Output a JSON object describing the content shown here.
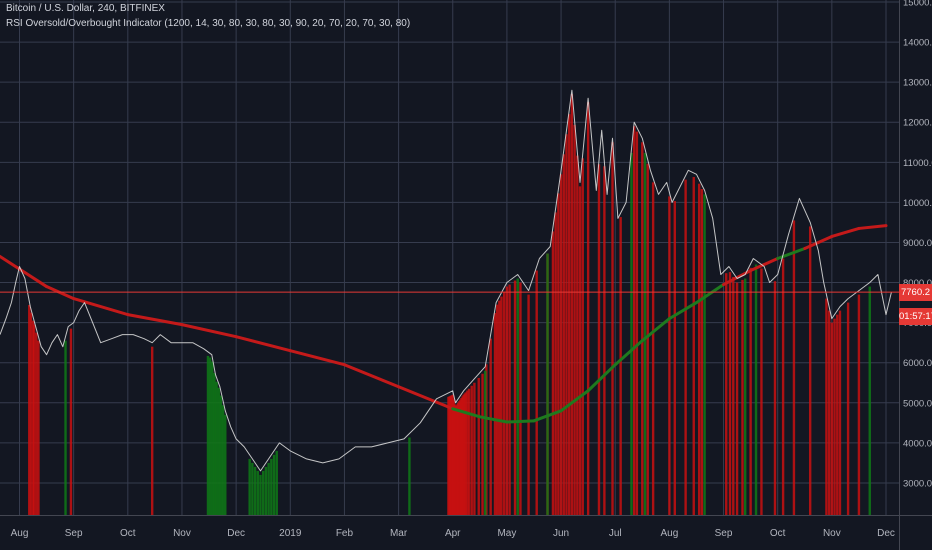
{
  "legend": {
    "symbol": "Bitcoin / U.S. Dollar, 240, BITFINEX",
    "indicator": "RSI Oversold/Overbought Indicator (1200, 14, 30, 80, 30, 80, 30, 90, 20, 70, 20, 70, 30, 80)"
  },
  "last_price_label": "7760.2",
  "countdown_label": "01:57:17",
  "colors": {
    "background": "#131722",
    "grid": "#363c4e",
    "axis_text": "#b2b5be",
    "price_line": "#d8d8d8",
    "ma_above": "#c41a1a",
    "ma_below": "#1e7a1e",
    "bar_red": "#c91010",
    "bar_green": "#0f7a16",
    "price_tag": "#e53935",
    "last_price_line": "#e53935"
  },
  "chart_data": {
    "type": "line",
    "title": "Bitcoin / U.S. Dollar, 240, BITFINEX",
    "x_tick_labels": [
      "Aug",
      "Sep",
      "Oct",
      "Nov",
      "Dec",
      "2019",
      "Feb",
      "Mar",
      "Apr",
      "May",
      "Jun",
      "Jul",
      "Aug",
      "Sep",
      "Oct",
      "Nov",
      "Dec"
    ],
    "x_tick_months": [
      1,
      2,
      3,
      4,
      5,
      6,
      7,
      8,
      9,
      10,
      11,
      12,
      13,
      14,
      15,
      16,
      17
    ],
    "x_range_months": [
      0.64,
      17.24
    ],
    "y_tick_labels": [
      "3000.0",
      "4000.0",
      "5000.0",
      "6000.0",
      "7000.0",
      "8000.0",
      "9000.0",
      "10000.0",
      "11000.0",
      "12000.0",
      "13000.0",
      "14000.0",
      "15000.0"
    ],
    "y_ticks": [
      3000,
      4000,
      5000,
      6000,
      7000,
      8000,
      9000,
      10000,
      11000,
      12000,
      13000,
      14000,
      15000
    ],
    "ylim": [
      2200,
      15050
    ],
    "grid": true,
    "x_unit": "months since Jul 2018",
    "series": [
      {
        "kind": "price",
        "x": [
          0.64,
          0.75,
          0.85,
          0.93,
          1.0,
          1.1,
          1.2,
          1.3,
          1.4,
          1.5,
          1.6,
          1.7,
          1.8,
          1.9,
          2.0,
          2.1,
          2.2,
          2.35,
          2.5,
          2.7,
          2.9,
          3.1,
          3.3,
          3.45,
          3.6,
          3.8,
          4.0,
          4.2,
          4.4,
          4.55,
          4.62,
          4.7,
          4.8,
          4.9,
          5.0,
          5.15,
          5.3,
          5.45,
          5.6,
          5.8,
          6.0,
          6.3,
          6.6,
          6.9,
          7.2,
          7.5,
          7.8,
          8.1,
          8.4,
          8.7,
          9.0,
          9.05,
          9.2,
          9.4,
          9.6,
          9.8,
          10.0,
          10.2,
          10.4,
          10.6,
          10.8,
          11.0,
          11.2,
          11.35,
          11.5,
          11.65,
          11.75,
          11.85,
          11.95,
          12.05,
          12.2,
          12.35,
          12.5,
          12.65,
          12.8,
          12.95,
          13.05,
          13.2,
          13.35,
          13.5,
          13.65,
          13.8,
          13.95,
          14.1,
          14.25,
          14.4,
          14.55,
          14.75,
          14.85,
          15.0,
          15.2,
          15.4,
          15.6,
          15.75,
          15.85,
          16.0,
          16.15,
          16.3,
          16.5,
          16.7,
          16.85,
          17.0,
          17.1
        ],
        "y": [
          6700,
          7100,
          7500,
          8000,
          8400,
          8100,
          7400,
          6900,
          6400,
          6200,
          6500,
          6700,
          6400,
          6900,
          7000,
          7300,
          7500,
          7000,
          6500,
          6600,
          6700,
          6700,
          6600,
          6500,
          6700,
          6500,
          6500,
          6500,
          6350,
          6200,
          5700,
          5400,
          4800,
          4400,
          4100,
          3900,
          3600,
          3300,
          3600,
          4000,
          3800,
          3600,
          3500,
          3600,
          3900,
          3900,
          4000,
          4100,
          4500,
          5100,
          5300,
          5000,
          5300,
          5600,
          5900,
          7500,
          8000,
          8200,
          7800,
          8600,
          8900,
          10800,
          12800,
          10500,
          12600,
          10300,
          11800,
          10200,
          11600,
          9600,
          10000,
          12000,
          11600,
          10800,
          10200,
          10500,
          10000,
          10400,
          10800,
          10700,
          10300,
          9600,
          8200,
          8400,
          8100,
          8200,
          8600,
          8400,
          8000,
          8200,
          9200,
          10100,
          9500,
          8800,
          8000,
          7100,
          7400,
          7600,
          7800,
          8000,
          8200,
          7200,
          7760
        ]
      },
      {
        "kind": "moving-average",
        "x": [
          0.64,
          1.5,
          2.0,
          3.0,
          4.0,
          5.0,
          6.0,
          7.0,
          8.0,
          9.0,
          9.5,
          10.0,
          10.5,
          11.0,
          11.5,
          12.0,
          12.5,
          13.0,
          13.5,
          14.0,
          14.5,
          15.0,
          15.5,
          16.0,
          16.5,
          17.0
        ],
        "y": [
          8650,
          7900,
          7600,
          7200,
          6950,
          6650,
          6300,
          5950,
          5400,
          4850,
          4650,
          4520,
          4550,
          4800,
          5300,
          5950,
          6550,
          7100,
          7500,
          7950,
          8300,
          8600,
          8850,
          9150,
          9350,
          9420
        ]
      }
    ],
    "signal_bars": {
      "red": [
        1.18,
        1.21,
        1.25,
        1.27,
        1.31,
        1.35,
        1.95,
        3.45,
        8.92,
        8.94,
        8.96,
        8.98,
        9.0,
        9.02,
        9.04,
        9.06,
        9.08,
        9.1,
        9.12,
        9.14,
        9.16,
        9.18,
        9.2,
        9.22,
        9.24,
        9.27,
        9.3,
        9.35,
        9.4,
        9.48,
        9.55,
        9.62,
        9.7,
        9.78,
        9.82,
        9.86,
        9.9,
        9.95,
        10.0,
        10.05,
        10.15,
        10.25,
        10.4,
        10.55,
        10.75,
        10.85,
        10.9,
        10.95,
        11.0,
        11.05,
        11.1,
        11.15,
        11.2,
        11.25,
        11.3,
        11.35,
        11.4,
        11.5,
        11.7,
        11.8,
        11.95,
        12.1,
        12.35,
        12.4,
        12.5,
        12.6,
        12.7,
        13.0,
        13.1,
        13.3,
        13.45,
        13.55,
        13.6,
        14.05,
        14.12,
        14.18,
        14.25,
        14.35,
        14.5,
        14.7,
        14.95,
        15.1,
        15.3,
        15.6,
        15.9,
        15.95,
        16.0,
        16.05,
        16.1,
        16.15,
        16.3,
        16.5
      ],
      "green": [
        1.85,
        4.48,
        4.52,
        4.56,
        4.6,
        4.64,
        4.68,
        4.72,
        4.76,
        4.8,
        5.25,
        5.3,
        5.35,
        5.4,
        5.45,
        5.5,
        5.55,
        5.6,
        5.65,
        5.7,
        5.75,
        8.2,
        9.6,
        10.2,
        10.75,
        12.3,
        12.55,
        13.65,
        14.4,
        14.6,
        16.7
      ]
    }
  }
}
